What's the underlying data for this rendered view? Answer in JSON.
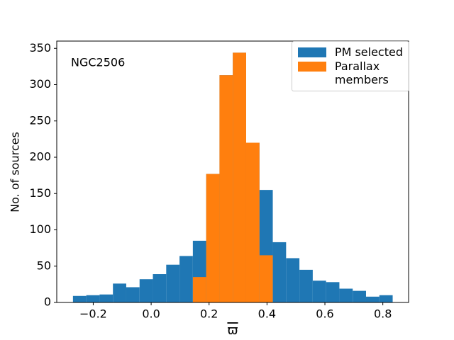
{
  "chart_data": {
    "type": "histogram",
    "annotation": "NGC2506",
    "xlabel": "ϖ",
    "ylabel": "No. of sources",
    "bins": [
      -0.27,
      -0.224,
      -0.178,
      -0.132,
      -0.086,
      -0.04,
      0.006,
      0.052,
      0.098,
      0.144,
      0.19,
      0.236,
      0.282,
      0.328,
      0.374,
      0.42,
      0.466,
      0.512,
      0.558,
      0.604,
      0.65,
      0.696,
      0.742,
      0.788,
      0.834
    ],
    "series": [
      {
        "name": "PM selected",
        "color": "#1f77b4",
        "values": [
          9,
          10,
          11,
          26,
          21,
          32,
          39,
          52,
          64,
          85,
          177,
          313,
          344,
          220,
          155,
          83,
          61,
          45,
          30,
          28,
          19,
          16,
          8,
          10
        ]
      },
      {
        "name": "Parallax\nmembers",
        "color": "#ff7f0e",
        "values": [
          0,
          0,
          0,
          0,
          0,
          0,
          0,
          0,
          0,
          35,
          177,
          313,
          344,
          220,
          65,
          0,
          0,
          0,
          0,
          0,
          0,
          0,
          0,
          0
        ]
      }
    ],
    "xlim": [
      -0.326,
      0.889
    ],
    "ylim": [
      0,
      360
    ],
    "xticks": [
      {
        "value": -0.2,
        "label": "−0.2"
      },
      {
        "value": 0,
        "label": "0.0"
      },
      0.2,
      0.4,
      0.6,
      0.8
    ],
    "yticks": [
      0,
      50,
      100,
      150,
      200,
      250,
      300,
      350
    ],
    "legend": "upper right"
  }
}
